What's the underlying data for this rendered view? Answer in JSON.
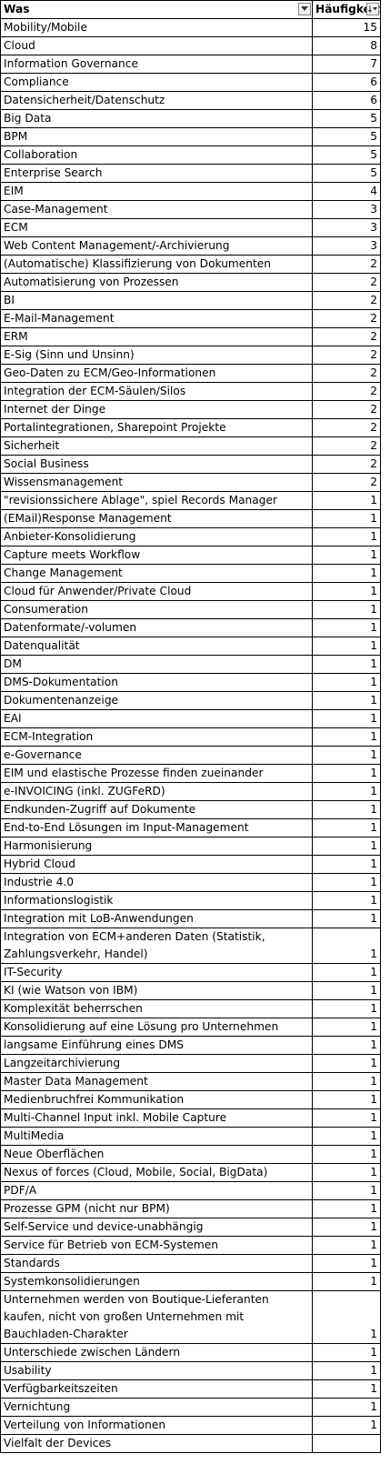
{
  "headers": {
    "col1": "Was",
    "col2": "Häufigkeit"
  },
  "rows": [
    {
      "label": "Mobility/Mobile",
      "value": "15"
    },
    {
      "label": "Cloud",
      "value": "8"
    },
    {
      "label": "Information Governance",
      "value": "7"
    },
    {
      "label": "Compliance",
      "value": "6"
    },
    {
      "label": "Datensicherheit/Datenschutz",
      "value": "6"
    },
    {
      "label": "Big Data",
      "value": "5"
    },
    {
      "label": "BPM",
      "value": "5"
    },
    {
      "label": "Collaboration",
      "value": "5"
    },
    {
      "label": "Enterprise Search",
      "value": "5"
    },
    {
      "label": "EIM",
      "value": "4"
    },
    {
      "label": "Case-Management",
      "value": "3"
    },
    {
      "label": "ECM",
      "value": "3"
    },
    {
      "label": "Web Content Management/-Archivierung",
      "value": "3"
    },
    {
      "label": "(Automatische) Klassifizierung von Dokumenten",
      "value": "2"
    },
    {
      "label": "Automatisierung von Prozessen",
      "value": "2"
    },
    {
      "label": "BI",
      "value": "2"
    },
    {
      "label": "E-Mail-Management",
      "value": "2"
    },
    {
      "label": "ERM",
      "value": "2"
    },
    {
      "label": "E-Sig (Sinn und Unsinn)",
      "value": "2"
    },
    {
      "label": "Geo-Daten zu ECM/Geo-Informationen",
      "value": "2"
    },
    {
      "label": "Integration der ECM-Säulen/Silos",
      "value": "2"
    },
    {
      "label": "Internet der Dinge",
      "value": "2"
    },
    {
      "label": "Portalintegrationen, Sharepoint Projekte",
      "value": "2"
    },
    {
      "label": "Sicherheit",
      "value": "2"
    },
    {
      "label": "Social Business",
      "value": "2"
    },
    {
      "label": "Wissensmanagement",
      "value": "2"
    },
    {
      "label": "\"revisionssichere Ablage\", spiel Records Manager",
      "value": "1"
    },
    {
      "label": "(EMail)Response Management",
      "value": "1"
    },
    {
      "label": "Anbieter-Konsolidierung",
      "value": "1"
    },
    {
      "label": "Capture meets Workflow",
      "value": "1"
    },
    {
      "label": "Change Management",
      "value": "1"
    },
    {
      "label": "Cloud für Anwender/Private Cloud",
      "value": "1"
    },
    {
      "label": "Consumeration",
      "value": "1"
    },
    {
      "label": "Datenformate/-volumen",
      "value": "1"
    },
    {
      "label": "Datenqualität",
      "value": "1"
    },
    {
      "label": "DM",
      "value": "1"
    },
    {
      "label": "DMS-Dokumentation",
      "value": "1"
    },
    {
      "label": "Dokumentenanzeige",
      "value": "1"
    },
    {
      "label": "EAI",
      "value": "1"
    },
    {
      "label": "ECM-Integration",
      "value": "1"
    },
    {
      "label": "e-Governance",
      "value": "1"
    },
    {
      "label": "EIM und elastische Prozesse finden zueinander",
      "value": "1"
    },
    {
      "label": "e-INVOICING (inkl. ZUGFeRD)",
      "value": "1"
    },
    {
      "label": "Endkunden-Zugriff auf Dokumente",
      "value": "1"
    },
    {
      "label": "End-to-End Lösungen im Input-Management",
      "value": "1"
    },
    {
      "label": "Harmonisierung",
      "value": "1"
    },
    {
      "label": "Hybrid Cloud",
      "value": "1"
    },
    {
      "label": "Industrie 4.0",
      "value": "1"
    },
    {
      "label": "Informationslogistik",
      "value": "1"
    },
    {
      "label": "Integration mit LoB-Anwendungen",
      "value": "1"
    },
    {
      "label": "Integration von ECM+anderen Daten (Statistik, Zahlungsverkehr, Handel)",
      "value": "1"
    },
    {
      "label": "IT-Security",
      "value": "1"
    },
    {
      "label": "KI (wie Watson von IBM)",
      "value": "1"
    },
    {
      "label": "Komplexität beherrschen",
      "value": "1"
    },
    {
      "label": "Konsolidierung auf eine Lösung pro Unternehmen",
      "value": "1"
    },
    {
      "label": "langsame Einführung eines DMS",
      "value": "1"
    },
    {
      "label": "Langzeitarchivierung",
      "value": "1"
    },
    {
      "label": "Master Data Management",
      "value": "1"
    },
    {
      "label": "Medienbruchfrei Kommunikation",
      "value": "1"
    },
    {
      "label": "Multi-Channel Input inkl. Mobile Capture",
      "value": "1"
    },
    {
      "label": "MultiMedia",
      "value": "1"
    },
    {
      "label": "Neue Oberflächen",
      "value": "1"
    },
    {
      "label": "Nexus of forces (Cloud, Mobile, Social, BigData)",
      "value": "1"
    },
    {
      "label": "PDF/A",
      "value": "1"
    },
    {
      "label": "Prozesse GPM (nicht nur BPM)",
      "value": "1"
    },
    {
      "label": "Self-Service und device-unabhängig",
      "value": "1"
    },
    {
      "label": "Service für Betrieb von ECM-Systemen",
      "value": "1"
    },
    {
      "label": "Standards",
      "value": "1"
    },
    {
      "label": "Systemkonsolidierungen",
      "value": "1"
    },
    {
      "label": "Unternehmen werden von Boutique-Lieferanten kaufen, nicht von großen Unternehmen mit Bauchladen-Charakter",
      "value": "1"
    },
    {
      "label": "Unterschiede zwischen Ländern",
      "value": "1"
    },
    {
      "label": "Usability",
      "value": "1"
    },
    {
      "label": "Verfügbarkeitszeiten",
      "value": "1"
    },
    {
      "label": "Vernichtung",
      "value": "1"
    },
    {
      "label": "Verteilung von Informationen",
      "value": "1"
    },
    {
      "label": "Vielfalt der Devices",
      "value": ""
    }
  ]
}
